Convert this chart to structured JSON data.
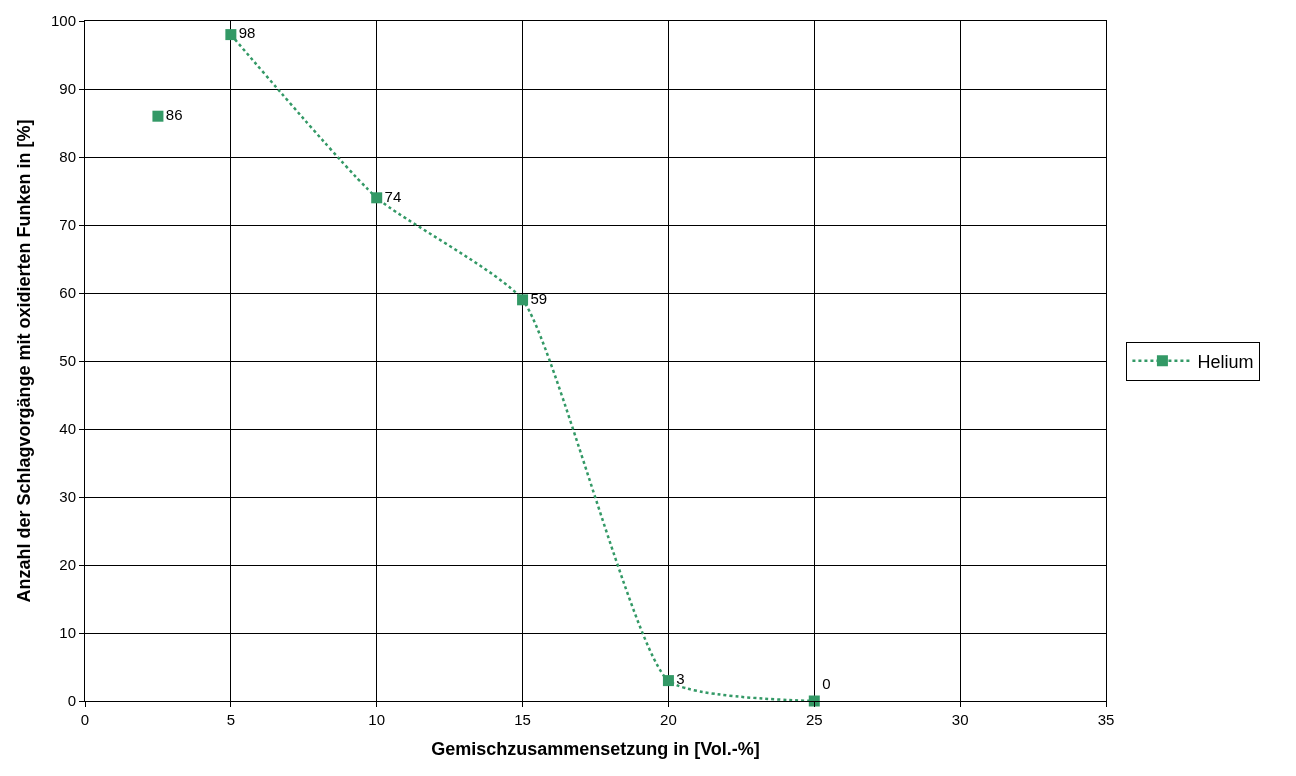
{
  "chart_data": {
    "type": "line",
    "xlabel": "Gemischzusammensetzung in [Vol.-%]",
    "ylabel": "Anzahl der Schlagvorgänge mit oxidierten Funken in [%]",
    "series": [
      {
        "name": "Helium",
        "color": "#339966",
        "x": [
          5,
          10,
          15,
          20,
          25
        ],
        "values": [
          98,
          74,
          59,
          3,
          0
        ],
        "line_style": "dotted"
      },
      {
        "type": "scatter",
        "color": "#339966",
        "x": [
          2.5
        ],
        "values": [
          86
        ]
      }
    ],
    "xlim": [
      0,
      35
    ],
    "xticks": [
      0,
      5,
      10,
      15,
      20,
      25,
      30,
      35
    ],
    "ylim": [
      0,
      100
    ],
    "yticks": [
      0,
      10,
      20,
      30,
      40,
      50,
      60,
      70,
      80,
      90,
      100
    ],
    "grid": true,
    "legend": "right",
    "marker": "square",
    "data_labels": true
  }
}
